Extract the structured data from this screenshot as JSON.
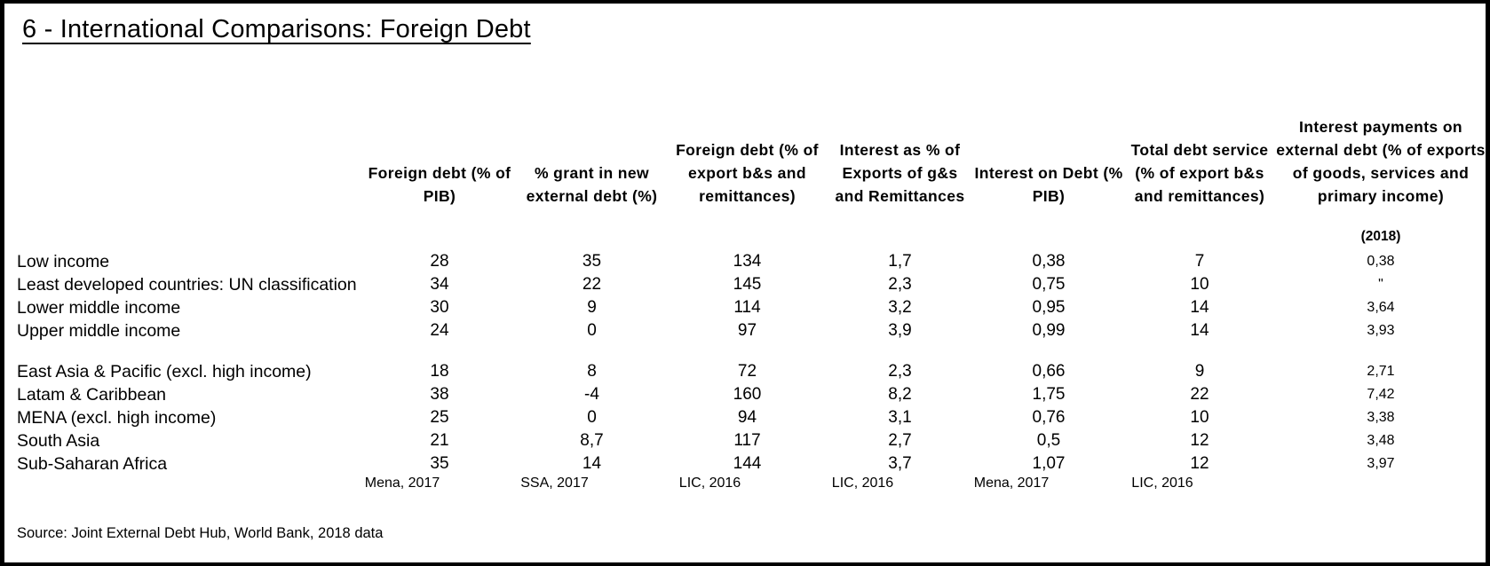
{
  "title": "6 - International Comparisons: Foreign Debt",
  "source": "Source: Joint External Debt Hub, World Bank, 2018 data",
  "colors": {
    "text": "#000000",
    "background": "#ffffff",
    "border": "#000000"
  },
  "table": {
    "corner_label": "",
    "columns": [
      {
        "label": "Foreign debt (% of PIB)",
        "sublabel": "",
        "note": "Mena, 2017"
      },
      {
        "label": "% grant in new external debt (%)",
        "sublabel": "",
        "note": "SSA, 2017"
      },
      {
        "label": "Foreign debt (% of export b&s and remittances)",
        "sublabel": "",
        "note": "LIC, 2016"
      },
      {
        "label": "Interest as % of Exports of g&s and Remittances",
        "sublabel": "",
        "note": "LIC, 2016"
      },
      {
        "label": "Interest on Debt (% PIB)",
        "sublabel": "",
        "note": "Mena, 2017"
      },
      {
        "label": "Total debt service (% of export b&s and remittances)",
        "sublabel": "",
        "note": "LIC, 2016"
      },
      {
        "label": "Interest payments on external debt (% of exports of goods, services and primary income)",
        "sublabel": "(2018)",
        "note": ""
      }
    ],
    "groups": [
      {
        "rows": [
          {
            "label": "Low income",
            "values": [
              "28",
              "35",
              "134",
              "1,7",
              "0,38",
              "7",
              "0,38"
            ]
          },
          {
            "label": "Least developed countries: UN classification",
            "values": [
              "34",
              "22",
              "145",
              "2,3",
              "0,75",
              "10",
              "\""
            ]
          },
          {
            "label": "Lower middle income",
            "values": [
              "30",
              "9",
              "114",
              "3,2",
              "0,95",
              "14",
              "3,64"
            ]
          },
          {
            "label": "Upper middle income",
            "values": [
              "24",
              "0",
              "97",
              "3,9",
              "0,99",
              "14",
              "3,93"
            ]
          }
        ]
      },
      {
        "rows": [
          {
            "label": "East Asia & Pacific (excl. high income)",
            "values": [
              "18",
              "8",
              "72",
              "2,3",
              "0,66",
              "9",
              "2,71"
            ]
          },
          {
            "label": "Latam & Caribbean",
            "values": [
              "38",
              "-4",
              "160",
              "8,2",
              "1,75",
              "22",
              "7,42"
            ]
          },
          {
            "label": "MENA (excl. high income)",
            "values": [
              "25",
              "0",
              "94",
              "3,1",
              "0,76",
              "10",
              "3,38"
            ]
          },
          {
            "label": "South Asia",
            "values": [
              "21",
              "8,7",
              "117",
              "2,7",
              "0,5",
              "12",
              "3,48"
            ]
          },
          {
            "label": "Sub-Saharan Africa",
            "values": [
              "35",
              "14",
              "144",
              "3,7",
              "1,07",
              "12",
              "3,97"
            ]
          }
        ]
      }
    ]
  }
}
